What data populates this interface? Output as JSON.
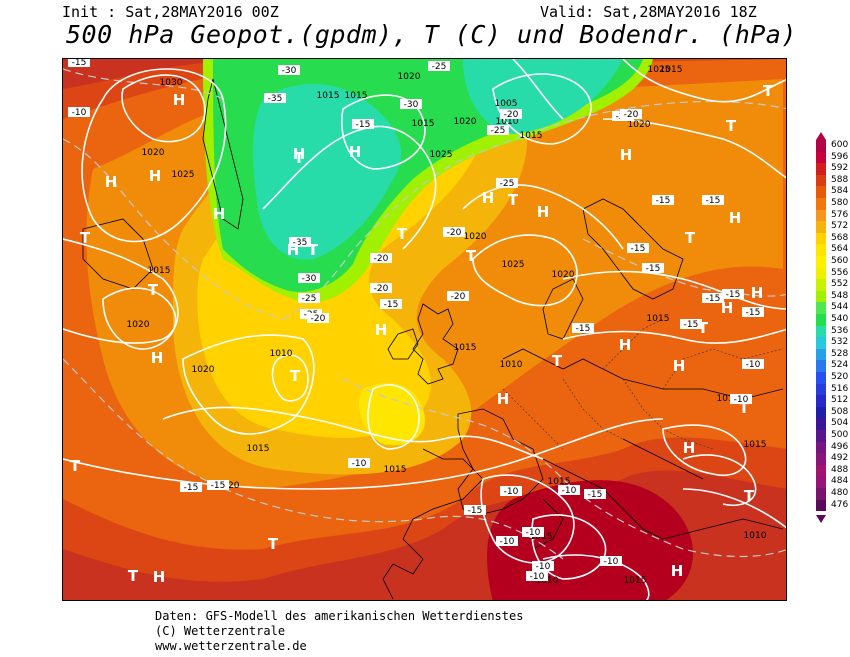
{
  "header": {
    "init": "Init : Sat,28MAY2016 00Z",
    "valid": "Valid: Sat,28MAY2016 18Z",
    "title": "500 hPa Geopot.(gpdm), T (C) und Bodendr. (hPa)"
  },
  "footer": {
    "line1": "Daten: GFS-Modell des amerikanischen Wetterdienstes",
    "line2": "(C) Wetterzentrale",
    "line3": "www.wetterzentrale.de"
  },
  "legend": {
    "values": [
      "600",
      "596",
      "592",
      "588",
      "584",
      "580",
      "576",
      "572",
      "568",
      "564",
      "560",
      "556",
      "552",
      "548",
      "544",
      "540",
      "536",
      "532",
      "528",
      "524",
      "520",
      "516",
      "512",
      "508",
      "504",
      "500",
      "496",
      "492",
      "488",
      "484",
      "480",
      "476"
    ],
    "colors": [
      "#b40046",
      "#c8003c",
      "#d21e1e",
      "#dc3c14",
      "#e65a0a",
      "#f0780a",
      "#f5961e",
      "#f5b40a",
      "#ffd200",
      "#ffe600",
      "#fff000",
      "#f0f000",
      "#c8f000",
      "#a0f000",
      "#50e650",
      "#28dc50",
      "#28dcaa",
      "#28c8dc",
      "#28a0e6",
      "#2878f0",
      "#2850f0",
      "#283cdc",
      "#2828c8",
      "#1e1eaa",
      "#3c1496",
      "#5a148c",
      "#781482",
      "#8c1478",
      "#a0146e",
      "#961478",
      "#78146e",
      "#5a0a5a"
    ]
  },
  "map": {
    "colors": {
      "outer": "#c8321e",
      "orange_dark": "#dc4614",
      "orange": "#eb640f",
      "orange_light": "#f08c0a",
      "yellow_orange": "#f5b40a",
      "yellow": "#ffd200",
      "yellow_bright": "#ffe600",
      "lime": "#a0f000",
      "green": "#28dc50",
      "cyan": "#28dcaa",
      "dark_red": "#b4001e"
    },
    "isobar_labels": [
      "1030",
      "1020",
      "1025",
      "1015",
      "1020",
      "1015",
      "1015",
      "1020",
      "1025",
      "1015",
      "1020",
      "1005",
      "1010",
      "1015",
      "1020",
      "1025",
      "1020",
      "1025",
      "1020",
      "1015",
      "1010",
      "1015",
      "1010",
      "1010",
      "1020",
      "1015",
      "1015",
      "1020",
      "1015",
      "1015",
      "1010",
      "1010",
      "1015",
      "1015",
      "1015"
    ],
    "temp_labels": [
      "-15",
      "-10",
      "-30",
      "-35",
      "-15",
      "-30",
      "-25",
      "-20",
      "-25",
      "-20",
      "-20",
      "-35",
      "-30",
      "-25",
      "-25",
      "-20",
      "-20",
      "-20",
      "-15",
      "-20",
      "-25",
      "-15",
      "-15",
      "-15",
      "-20",
      "-15",
      "-15",
      "-15",
      "-15",
      "-15",
      "-15",
      "-10",
      "-10",
      "-15",
      "-15",
      "-15",
      "-10",
      "-10",
      "-10",
      "-15",
      "-10",
      "-10",
      "-10",
      "-10",
      "-10"
    ],
    "pressure_centers": [
      "H",
      "H",
      "H",
      "T",
      "T",
      "H",
      "T",
      "H",
      "H",
      "T",
      "H",
      "T",
      "H",
      "H",
      "T",
      "T",
      "H",
      "H",
      "T",
      "T",
      "H",
      "T",
      "T",
      "H",
      "T",
      "H",
      "T",
      "H",
      "H",
      "H",
      "T",
      "H",
      "H",
      "T",
      "T",
      "H",
      "T",
      "T",
      "H",
      "T"
    ]
  }
}
